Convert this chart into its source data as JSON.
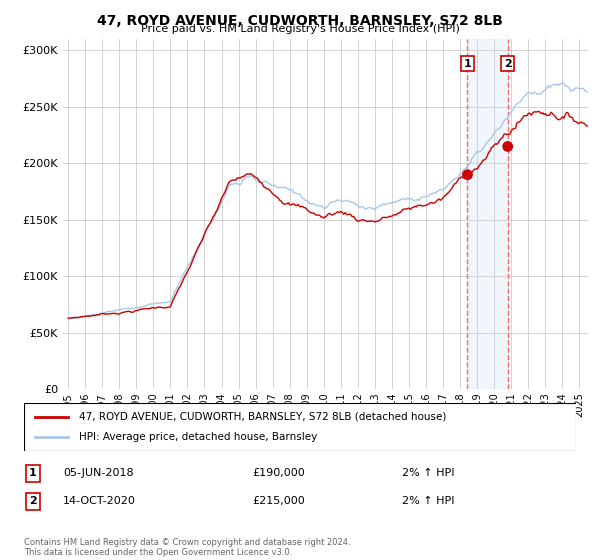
{
  "title": "47, ROYD AVENUE, CUDWORTH, BARNSLEY, S72 8LB",
  "subtitle": "Price paid vs. HM Land Registry's House Price Index (HPI)",
  "ylabel_ticks": [
    "£0",
    "£50K",
    "£100K",
    "£150K",
    "£200K",
    "£250K",
    "£300K"
  ],
  "ytick_values": [
    0,
    50000,
    100000,
    150000,
    200000,
    250000,
    300000
  ],
  "ylim": [
    0,
    310000
  ],
  "xlim_start": 1994.7,
  "xlim_end": 2025.5,
  "xticks": [
    1995,
    1996,
    1997,
    1998,
    1999,
    2000,
    2001,
    2002,
    2003,
    2004,
    2005,
    2006,
    2007,
    2008,
    2009,
    2010,
    2011,
    2012,
    2013,
    2014,
    2015,
    2016,
    2017,
    2018,
    2019,
    2020,
    2021,
    2022,
    2023,
    2024,
    2025
  ],
  "hpi_color": "#A8C8E8",
  "price_color": "#CC0000",
  "marker_color": "#CC0000",
  "vline_color": "#FF6666",
  "shade_color": "#D6E8F8",
  "background_color": "#FFFFFF",
  "plot_bg_color": "#FFFFFF",
  "footnote": "Contains HM Land Registry data © Crown copyright and database right 2024.\nThis data is licensed under the Open Government Licence v3.0.",
  "sale1_date": 2018.43,
  "sale1_price": 190000,
  "sale1_label": "05-JUN-2018",
  "sale1_price_str": "£190,000",
  "sale1_hpi": "2% ↑ HPI",
  "sale2_date": 2020.79,
  "sale2_price": 215000,
  "sale2_label": "14-OCT-2020",
  "sale2_price_str": "£215,000",
  "sale2_hpi": "2% ↑ HPI",
  "legend1": "47, ROYD AVENUE, CUDWORTH, BARNSLEY, S72 8LB (detached house)",
  "legend2": "HPI: Average price, detached house, Barnsley"
}
